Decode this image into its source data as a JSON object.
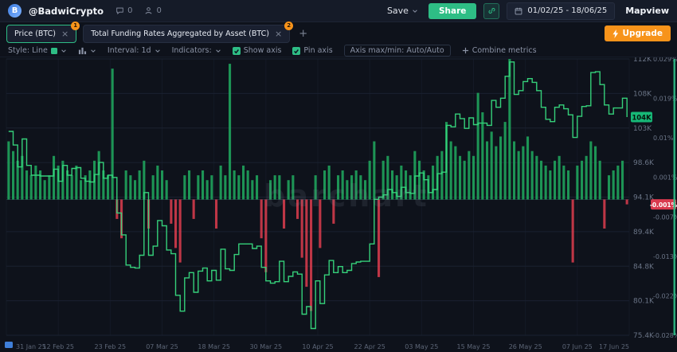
{
  "topbar": {
    "logo_letter": "B",
    "username": "@BadwiCrypto",
    "comments_count": "0",
    "followers_count": "0",
    "save_label": "Save",
    "share_label": "Share",
    "date_range": "01/02/25 - 18/06/25",
    "mapview_label": "Mapview"
  },
  "tabs": [
    {
      "label": "Price (BTC)",
      "badge": "1",
      "close": "×"
    },
    {
      "label": "Total Funding Rates Aggregated by Asset (BTC)",
      "badge": "2",
      "close": "×"
    }
  ],
  "add_tab_label": "+",
  "upgrade_label": "Upgrade",
  "toolbar": {
    "style_label": "Style: Line",
    "interval_label": "Interval: 1d",
    "indicators_label": "Indicators:",
    "show_axis_label": "Show axis",
    "pin_axis_label": "Pin axis",
    "axis_minmax_label": "Axis max/min: Auto/Auto",
    "combine_label": "Combine metrics"
  },
  "watermark": "barchart",
  "chart_data": {
    "type": "line+bar",
    "title": "Price (BTC) with Total Funding Rates Aggregated by Asset (BTC)",
    "x_labels": [
      "31 Jan 25",
      "12 Feb 25",
      "23 Feb 25",
      "07 Mar 25",
      "18 Mar 25",
      "30 Mar 25",
      "10 Apr 25",
      "22 Apr 25",
      "03 May 25",
      "15 May 25",
      "26 May 25",
      "07 Jun 25",
      "17 Jun 25"
    ],
    "price_axis": {
      "ticks": [
        "112K",
        "108K",
        "103K",
        "98.6K",
        "94.1K",
        "89.4K",
        "84.8K",
        "80.1K",
        "75.4K"
      ],
      "min": 75.4,
      "max": 112
    },
    "funding_axis": {
      "ticks": [
        "0.029%",
        "0.019%",
        "0.01%",
        "0.001%",
        "-0.007%",
        "-0.013%",
        "-0.022%",
        "-0.028%"
      ],
      "min": -0.028,
      "max": 0.029
    },
    "current_price_label": "104K",
    "current_funding_label": "-0.001%",
    "series": [
      {
        "name": "Price (BTC)",
        "type": "line",
        "unit": "K USD",
        "color": "#35d07a",
        "values": [
          102.4,
          100.6,
          97.7,
          101.4,
          97.9,
          96.6,
          96.6,
          96.5,
          96.5,
          96.5,
          97.4,
          95.8,
          97.9,
          96.6,
          97.5,
          97.6,
          96.2,
          95.8,
          95.7,
          96.7,
          98.3,
          96.2,
          96.6,
          96.3,
          91.6,
          88.7,
          84.7,
          84.4,
          84.3,
          86.0,
          94.3,
          86.0,
          87.2,
          90.6,
          89.9,
          86.7,
          86.2,
          80.7,
          78.6,
          83.0,
          83.7,
          81.1,
          83.9,
          84.3,
          82.6,
          84.0,
          82.7,
          86.8,
          84.2,
          84.0,
          86.1,
          87.5,
          87.5,
          87.5,
          86.9,
          87.2,
          84.4,
          82.6,
          82.3,
          82.5,
          85.2,
          82.5,
          83.2,
          83.8,
          83.5,
          78.2,
          79.2,
          76.3,
          82.6,
          79.6,
          83.4,
          85.3,
          83.7,
          84.5,
          83.7,
          84.0,
          84.9,
          85.1,
          85.2,
          85.2,
          87.5,
          93.4,
          93.7,
          94.0,
          94.7,
          94.3,
          93.8,
          95.0,
          94.3,
          94.2,
          96.5,
          96.9,
          96.0,
          94.3,
          94.7,
          96.8,
          97.0,
          103.2,
          103.0,
          104.7,
          104.1,
          102.8,
          104.2,
          103.3,
          103.5,
          103.5,
          103.2,
          106.5,
          105.6,
          106.8,
          109.7,
          111.6,
          107.3,
          107.8,
          109.0,
          109.4,
          108.9,
          107.8,
          105.6,
          104.0,
          103.7,
          105.6,
          105.9,
          105.4,
          104.6,
          101.6,
          104.4,
          105.7,
          105.8,
          110.2,
          110.3,
          108.6,
          105.9,
          104.7,
          105.5,
          105.5,
          106.8,
          104.3
        ]
      },
      {
        "name": "Total Funding Rates Aggregated by Asset (BTC)",
        "type": "bar",
        "unit": "%",
        "color_pos": "#1fa35c",
        "color_neg": "#d13b4b",
        "values": [
          0.012,
          0.01,
          0.008,
          0.009,
          0.006,
          0.005,
          0.007,
          0.006,
          0.004,
          0.005,
          0.009,
          0.007,
          0.008,
          0.006,
          0.005,
          0.007,
          0.004,
          0.005,
          0.006,
          0.008,
          0.01,
          0.006,
          0.005,
          0.027,
          -0.004,
          -0.008,
          0.006,
          0.005,
          0.004,
          0.006,
          0.008,
          -0.006,
          0.005,
          0.007,
          0.006,
          0.004,
          -0.005,
          -0.01,
          -0.013,
          0.005,
          0.006,
          -0.004,
          0.005,
          0.006,
          0.004,
          0.005,
          -0.006,
          0.007,
          0.005,
          0.028,
          0.006,
          0.005,
          0.007,
          0.006,
          0.004,
          0.005,
          -0.008,
          -0.015,
          0.004,
          0.005,
          0.005,
          -0.006,
          0.004,
          0.005,
          -0.004,
          -0.012,
          -0.018,
          -0.023,
          0.005,
          -0.01,
          0.006,
          0.007,
          -0.005,
          0.005,
          0.006,
          0.004,
          0.005,
          0.006,
          0.005,
          0.004,
          0.008,
          0.012,
          -0.016,
          0.008,
          0.009,
          0.006,
          0.005,
          0.007,
          0.006,
          0.005,
          0.01,
          0.008,
          0.006,
          0.005,
          0.007,
          0.009,
          0.01,
          0.016,
          0.012,
          0.011,
          0.009,
          0.008,
          0.01,
          0.009,
          0.022,
          0.018,
          0.012,
          0.014,
          0.011,
          0.013,
          0.016,
          0.029,
          0.012,
          0.01,
          0.011,
          0.013,
          0.01,
          0.009,
          0.008,
          0.007,
          0.006,
          0.008,
          0.009,
          0.007,
          0.006,
          -0.013,
          0.007,
          0.008,
          0.009,
          0.012,
          0.011,
          0.008,
          -0.006,
          0.005,
          0.006,
          0.007,
          0.008,
          -0.001
        ]
      }
    ],
    "layout": {
      "grid": true,
      "legend": "none",
      "price_axis_position": "right",
      "funding_axis_position": "far-right"
    }
  }
}
